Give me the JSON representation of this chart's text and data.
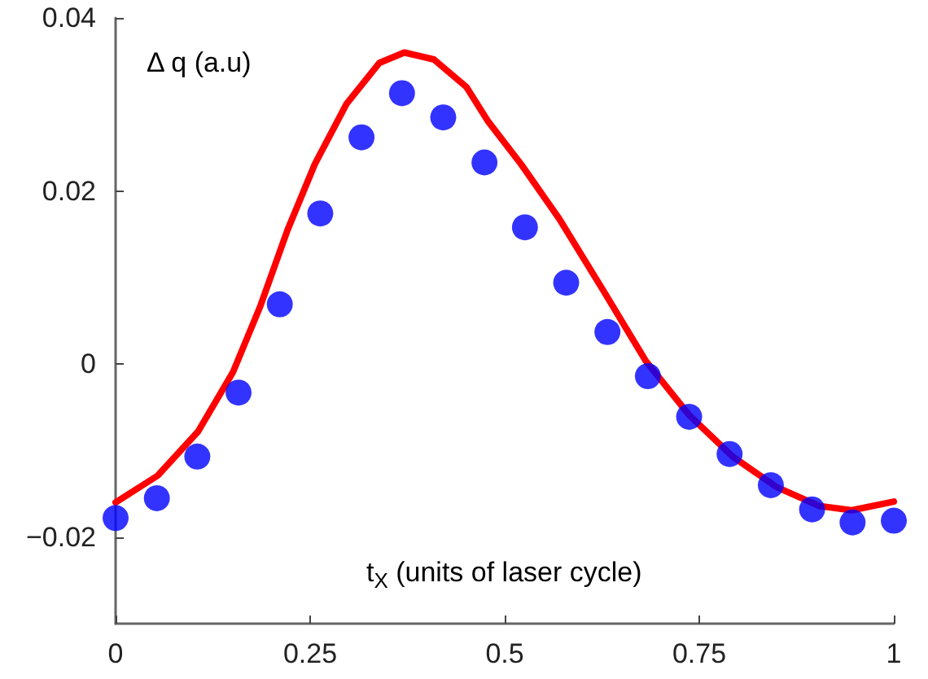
{
  "chart_data": {
    "type": "scatter",
    "xlabel": "t$_{X}$ (units of laser cycle)",
    "ylabel": "Δ q (a.u)",
    "xlim": [
      0,
      1
    ],
    "xticks": [
      0,
      0.25,
      0.5,
      0.75,
      1
    ],
    "ylim": [
      -0.03,
      0.04
    ],
    "yticks": [
      -0.02,
      0,
      0.02,
      0.04
    ],
    "series": [
      {
        "type": "line",
        "color": "#ff0000",
        "marker": "none",
        "line_style": "solid",
        "x": [
          0,
          0.054,
          0.106,
          0.151,
          0.186,
          0.221,
          0.256,
          0.297,
          0.339,
          0.371,
          0.409,
          0.451,
          0.479,
          0.521,
          0.57,
          0.626,
          0.681,
          0.737,
          0.793,
          0.849,
          0.904,
          0.946,
          1
        ],
        "values": [
          -0.016,
          -0.0129,
          -0.0078,
          -0.0009,
          0.0067,
          0.0155,
          0.0231,
          0.0301,
          0.0348,
          0.036,
          0.0352,
          0.032,
          0.028,
          0.0231,
          0.0168,
          0.0086,
          0.0004,
          -0.0059,
          -0.0107,
          -0.0142,
          -0.0164,
          -0.0169,
          -0.0159
        ]
      },
      {
        "type": "scatter",
        "color": "#0000ff",
        "marker": "circle",
        "x": [
          0,
          0.053,
          0.105,
          0.158,
          0.211,
          0.263,
          0.316,
          0.368,
          0.421,
          0.474,
          0.526,
          0.579,
          0.632,
          0.684,
          0.737,
          0.789,
          0.842,
          0.895,
          0.947,
          1
        ],
        "values": [
          -0.0178,
          -0.0155,
          -0.0107,
          -0.0033,
          0.0069,
          0.0174,
          0.0262,
          0.0313,
          0.0285,
          0.0233,
          0.0158,
          0.0094,
          0.0037,
          -0.0014,
          -0.0061,
          -0.0104,
          -0.014,
          -0.0168,
          -0.0183,
          -0.0181
        ]
      }
    ]
  }
}
